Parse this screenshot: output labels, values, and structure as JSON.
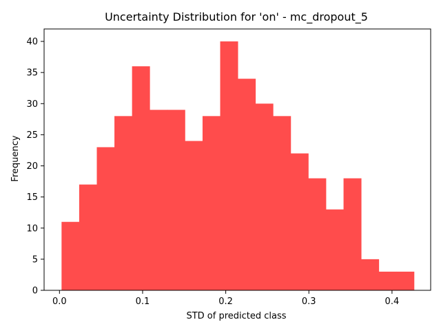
{
  "chart_data": {
    "type": "bar",
    "title": "Uncertainty Distribution for 'on' - mc_dropout_5",
    "xlabel": "STD of predicted class",
    "ylabel": "Frequency",
    "bar_color": "#ff4c4c",
    "xlim": [
      -0.0185,
      0.4465
    ],
    "ylim": [
      0,
      42
    ],
    "xticks": [
      0.0,
      0.1,
      0.2,
      0.3,
      0.4
    ],
    "xtick_labels": [
      "0.0",
      "0.1",
      "0.2",
      "0.3",
      "0.4"
    ],
    "yticks": [
      0,
      5,
      10,
      15,
      20,
      25,
      30,
      35,
      40
    ],
    "ytick_labels": [
      "0",
      "5",
      "10",
      "15",
      "20",
      "25",
      "30",
      "35",
      "40"
    ],
    "bin_start": 0.0025,
    "bin_width": 0.0212,
    "values": [
      11,
      17,
      23,
      28,
      36,
      29,
      29,
      24,
      28,
      40,
      34,
      30,
      28,
      22,
      18,
      13,
      18,
      5,
      3,
      3
    ]
  }
}
